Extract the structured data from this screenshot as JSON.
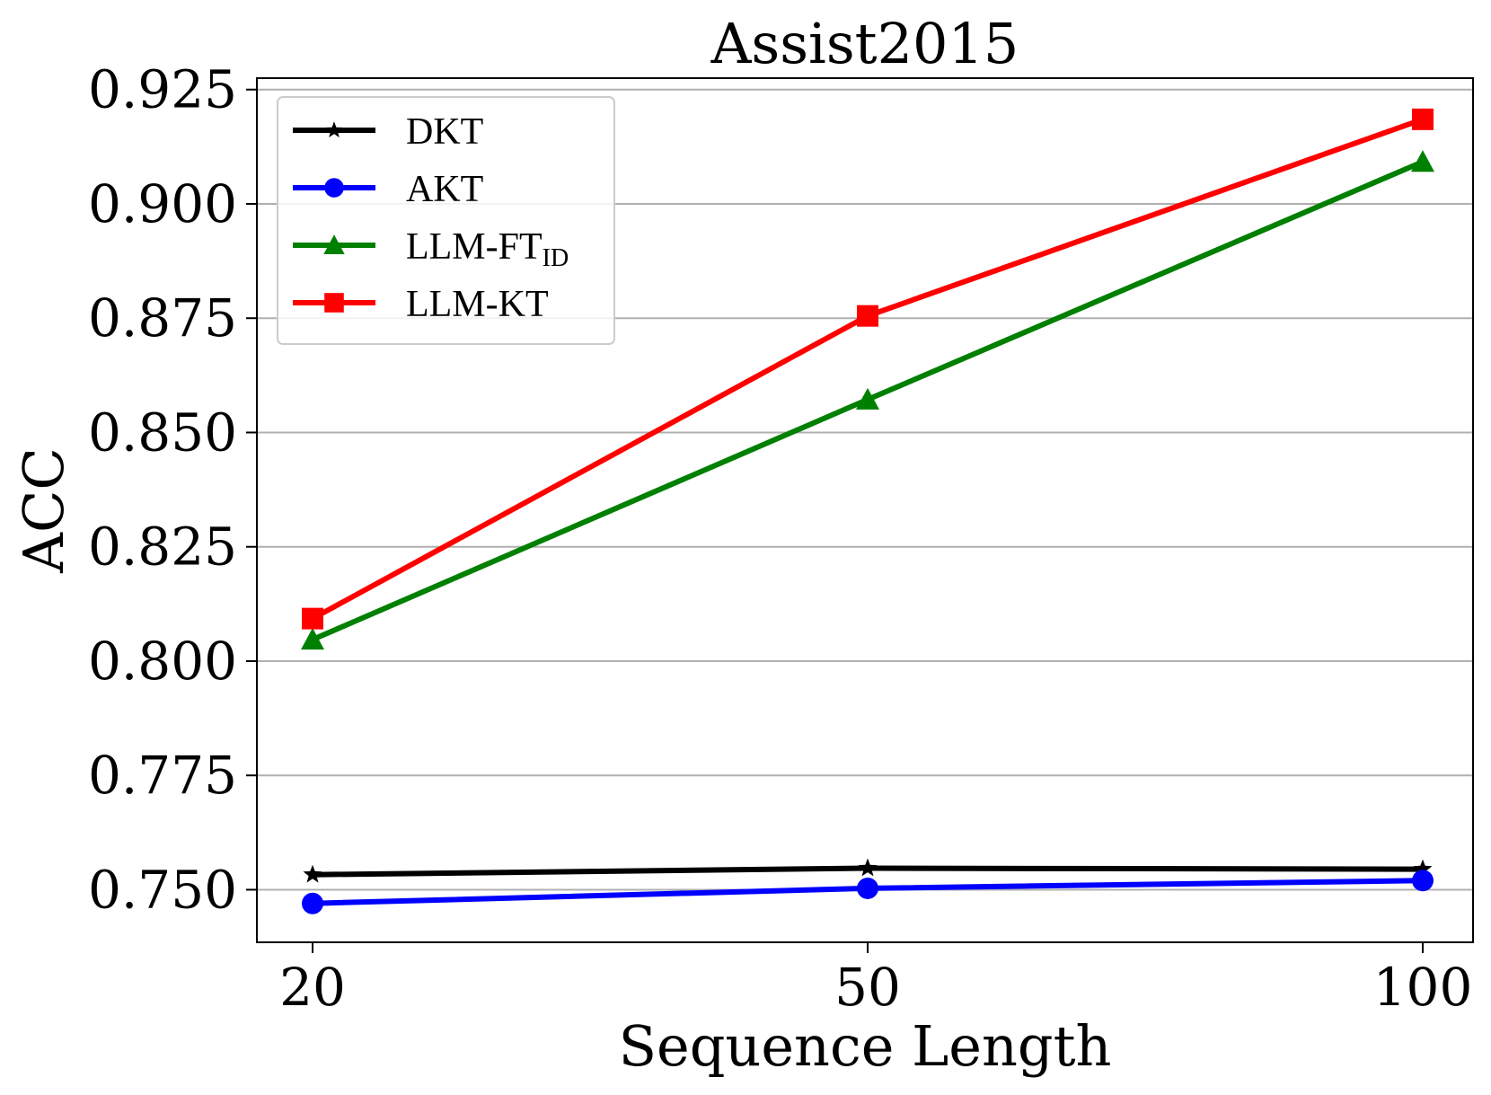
{
  "chart_data": {
    "type": "line",
    "title": "Assist2015",
    "xlabel": "Sequence Length",
    "ylabel": "ACC",
    "categories": [
      "20",
      "50",
      "100"
    ],
    "ylim": [
      0.7385,
      0.9275
    ],
    "yticks": [
      "0.750",
      "0.775",
      "0.800",
      "0.825",
      "0.850",
      "0.875",
      "0.900",
      "0.925"
    ],
    "grid": "horizontal",
    "legend_position": "top-left",
    "series": [
      {
        "name": "DKT",
        "label_main": "DKT",
        "label_sub": "",
        "color": "#000000",
        "marker": "star",
        "values": [
          0.7533,
          0.7547,
          0.7545
        ]
      },
      {
        "name": "AKT",
        "label_main": "AKT",
        "label_sub": "",
        "color": "#0000ff",
        "marker": "circle",
        "values": [
          0.747,
          0.7503,
          0.752
        ]
      },
      {
        "name": "LLM-FTID",
        "label_main": "LLM-FT",
        "label_sub": "ID",
        "color": "#008000",
        "marker": "triangle",
        "values": [
          0.8047,
          0.8572,
          0.9092
        ]
      },
      {
        "name": "LLM-KT",
        "label_main": "LLM-KT",
        "label_sub": "",
        "color": "#ff0000",
        "marker": "square",
        "values": [
          0.8093,
          0.8755,
          0.9185
        ]
      }
    ]
  }
}
